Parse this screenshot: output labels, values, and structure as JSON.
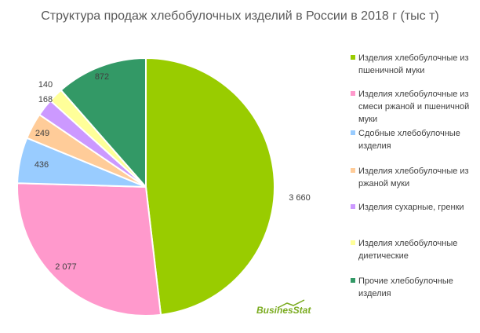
{
  "chart_data": {
    "type": "pie",
    "title": "Структура продаж хлебобулочных изделий в России в  2018 г (тыс т)",
    "labels": [
      "Изделия хлебобулочные из пшеничной муки",
      "Изделия хлебобулочные из смеси ржаной и пшеничной муки",
      "Сдобные хлебобулочные изделия",
      "Изделия хлебобулочные из ржаной муки",
      "Изделия сухарные, гренки",
      "Изделия хлебобулочные диетические",
      "Прочие хлебобулочные изделия"
    ],
    "values": [
      3660,
      2077,
      436,
      249,
      168,
      140,
      872
    ],
    "value_labels": [
      "3 660",
      "2 077",
      "436",
      "249",
      "168",
      "140",
      "872"
    ],
    "colors": [
      "#99cc00",
      "#ff99cc",
      "#99ccff",
      "#ffcc99",
      "#cc99ff",
      "#ffff99",
      "#339966"
    ],
    "legend_position": "right"
  },
  "watermark": "BusinesStat"
}
